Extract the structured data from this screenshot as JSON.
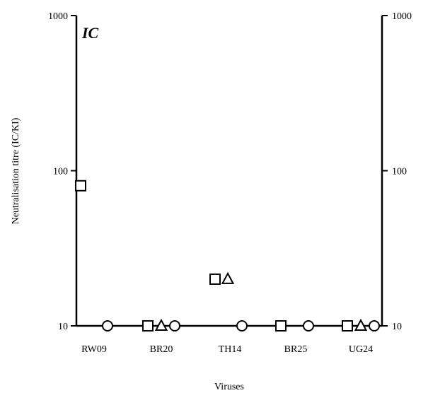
{
  "chart_data": {
    "type": "scatter",
    "panel_label": "IC",
    "xlabel": "Viruses",
    "ylabel": "Neutralisation titre (IC/KI)",
    "y_scale": "log",
    "ylim": [
      10,
      1000
    ],
    "y_ticks": [
      {
        "value": 10,
        "label": "10"
      },
      {
        "value": 100,
        "label": "100"
      },
      {
        "value": 1000,
        "label": "1000"
      }
    ],
    "categories": [
      "RW09",
      "BR20",
      "TH14",
      "BR25",
      "UG24"
    ],
    "markers": {
      "square": "square",
      "triangle": "triangle",
      "circle": "circle"
    },
    "points": [
      {
        "category": "RW09",
        "marker": "square",
        "y": 80
      },
      {
        "category": "RW09",
        "marker": "circle",
        "y": 10
      },
      {
        "category": "BR20",
        "marker": "square",
        "y": 10
      },
      {
        "category": "BR20",
        "marker": "triangle",
        "y": 10
      },
      {
        "category": "BR20",
        "marker": "circle",
        "y": 10
      },
      {
        "category": "TH14",
        "marker": "square",
        "y": 20
      },
      {
        "category": "TH14",
        "marker": "triangle",
        "y": 20
      },
      {
        "category": "TH14",
        "marker": "circle",
        "y": 10
      },
      {
        "category": "BR25",
        "marker": "square",
        "y": 10
      },
      {
        "category": "BR25",
        "marker": "circle",
        "y": 10
      },
      {
        "category": "UG24",
        "marker": "square",
        "y": 10
      },
      {
        "category": "UG24",
        "marker": "triangle",
        "y": 10
      },
      {
        "category": "UG24",
        "marker": "circle",
        "y": 10
      }
    ],
    "grid": false,
    "legend": "none"
  }
}
